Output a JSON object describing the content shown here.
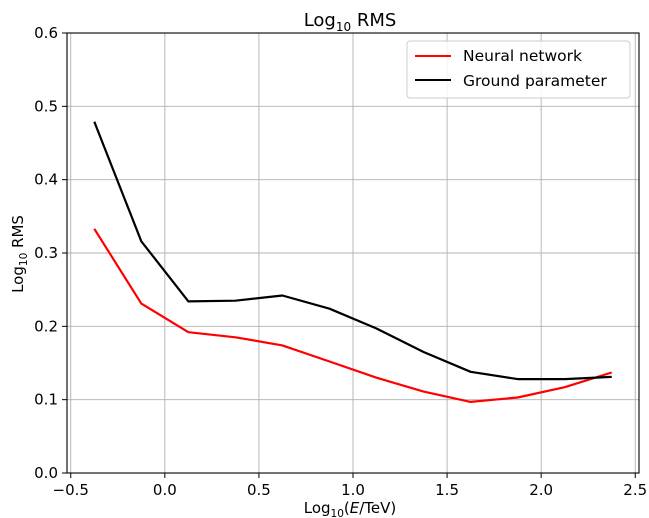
{
  "chart_data": {
    "type": "line",
    "title": {
      "main": "Log",
      "sub": "10",
      "rest": " RMS"
    },
    "xlabel": {
      "main": "Log",
      "sub": "10",
      "open": "(",
      "italic": "E",
      "rest": "/TeV)"
    },
    "ylabel": {
      "main": "Log",
      "sub": "10",
      "rest": " RMS"
    },
    "xlim": [
      -0.52,
      2.52
    ],
    "ylim": [
      0.0,
      0.6
    ],
    "xticks": [
      -0.5,
      0.0,
      0.5,
      1.0,
      1.5,
      2.0,
      2.5
    ],
    "xtick_labels": [
      "−0.5",
      "0.0",
      "0.5",
      "1.0",
      "1.5",
      "2.0",
      "2.5"
    ],
    "yticks": [
      0.0,
      0.1,
      0.2,
      0.3,
      0.4,
      0.5,
      0.6
    ],
    "ytick_labels": [
      "0.0",
      "0.1",
      "0.2",
      "0.3",
      "0.4",
      "0.5",
      "0.6"
    ],
    "grid": true,
    "legend_position": "top-right",
    "series": [
      {
        "name": "Neural network",
        "color": "#ff0000",
        "x": [
          -0.375,
          -0.125,
          0.125,
          0.375,
          0.625,
          0.875,
          1.125,
          1.375,
          1.625,
          1.875,
          2.125,
          2.375
        ],
        "y": [
          0.333,
          0.231,
          0.192,
          0.185,
          0.174,
          0.152,
          0.13,
          0.111,
          0.097,
          0.103,
          0.117,
          0.137
        ]
      },
      {
        "name": "Ground parameter",
        "color": "#000000",
        "x": [
          -0.375,
          -0.125,
          0.125,
          0.375,
          0.625,
          0.875,
          1.125,
          1.375,
          1.625,
          1.875,
          2.125,
          2.375
        ],
        "y": [
          0.479,
          0.316,
          0.234,
          0.235,
          0.242,
          0.224,
          0.197,
          0.165,
          0.138,
          0.128,
          0.128,
          0.131
        ]
      }
    ]
  }
}
